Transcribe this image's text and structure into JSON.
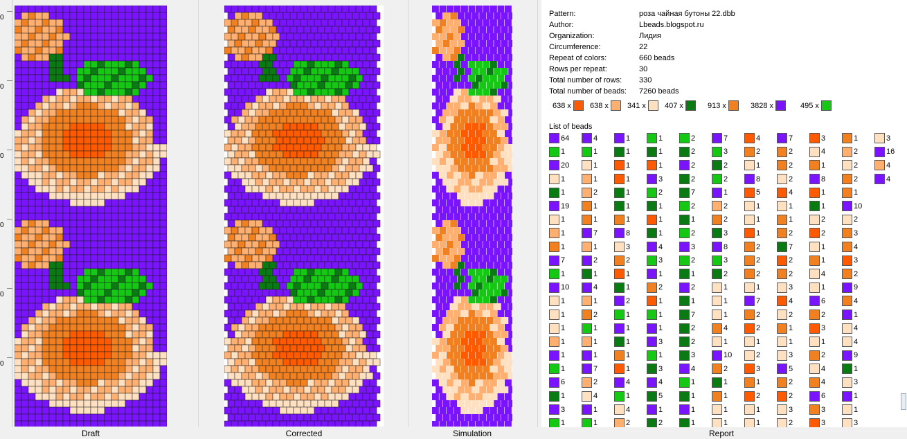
{
  "ruler": {
    "ticks": [
      "0",
      "0",
      "0",
      "0",
      "0",
      "0"
    ]
  },
  "panels": {
    "draft": "Draft",
    "corrected": "Corrected",
    "simulation": "Simulation",
    "report": "Report"
  },
  "colors": {
    "c1": "#ff5a00",
    "c2": "#ffb070",
    "c3": "#ffe0c0",
    "c4": "#0a7a12",
    "c5": "#f08020",
    "c6": "#7a14ff",
    "c7": "#14c814",
    "empty": "#ffffff",
    "grid": "#1a1a1a"
  },
  "report": {
    "info": [
      {
        "key": "Pattern:",
        "value": "роза чайная бутоны 22.dbb"
      },
      {
        "key": "Author:",
        "value": "Lbeads.blogspot.ru"
      },
      {
        "key": "Organization:",
        "value": "Лидия"
      },
      {
        "key": "Circumference:",
        "value": "22"
      },
      {
        "key": "Repeat of colors:",
        "value": "660 beads"
      },
      {
        "key": "Rows per repeat:",
        "value": "30"
      },
      {
        "key": "Total number of rows:",
        "value": "330"
      },
      {
        "key": "Total number of beads:",
        "value": "7260 beads"
      }
    ],
    "summary": [
      {
        "count": "638 x",
        "color": "c1"
      },
      {
        "count": "638 x",
        "color": "c2"
      },
      {
        "count": "341 x",
        "color": "c3"
      },
      {
        "count": "407 x",
        "color": "c4"
      },
      {
        "count": "913 x",
        "color": "c5"
      },
      {
        "count": "3828 x",
        "color": "c6"
      },
      {
        "count": "495 x",
        "color": "c7"
      }
    ],
    "list_title": "List of beads",
    "bead_rows": [
      [
        [
          "c6",
          "64"
        ],
        [
          "c6",
          "4"
        ],
        [
          "c6",
          "1"
        ],
        [
          "c7",
          "1"
        ],
        [
          "c7",
          "2"
        ],
        [
          "c6",
          "7"
        ],
        [
          "c1",
          "4"
        ],
        [
          "c6",
          "7"
        ],
        [
          "c1",
          "3"
        ],
        [
          "c5",
          "1"
        ],
        [
          "c3",
          "3"
        ]
      ],
      [
        [
          "c7",
          "1"
        ],
        [
          "c7",
          "1"
        ],
        [
          "c4",
          "1"
        ],
        [
          "c4",
          "1"
        ],
        [
          "c4",
          "2"
        ],
        [
          "c7",
          "3"
        ],
        [
          "c5",
          "2"
        ],
        [
          "c5",
          "2"
        ],
        [
          "c3",
          "4"
        ],
        [
          "c2",
          "2"
        ],
        [
          "c6",
          "16"
        ]
      ],
      [
        [
          "c6",
          "20"
        ],
        [
          "c3",
          "1"
        ],
        [
          "c1",
          "1"
        ],
        [
          "c1",
          "1"
        ],
        [
          "c6",
          "2"
        ],
        [
          "c4",
          "2"
        ],
        [
          "c3",
          "1"
        ],
        [
          "c5",
          "2"
        ],
        [
          "c5",
          "1"
        ],
        [
          "c3",
          "2"
        ],
        [
          "c2",
          "4"
        ]
      ],
      [
        [
          "c3",
          "1"
        ],
        [
          "c2",
          "1"
        ],
        [
          "c1",
          "1"
        ],
        [
          "c6",
          "3"
        ],
        [
          "c4",
          "2"
        ],
        [
          "c7",
          "2"
        ],
        [
          "c6",
          "8"
        ],
        [
          "c3",
          "2"
        ],
        [
          "c6",
          "8"
        ],
        [
          "c5",
          "2"
        ],
        [
          "c6",
          "4"
        ]
      ],
      [
        [
          "c4",
          "1"
        ],
        [
          "c2",
          "2"
        ],
        [
          "c4",
          "1"
        ],
        [
          "c7",
          "2"
        ],
        [
          "c4",
          "7"
        ],
        [
          "c6",
          "1"
        ],
        [
          "c1",
          "5"
        ],
        [
          "c1",
          "4"
        ],
        [
          "c1",
          "1"
        ],
        [
          "c5",
          "1"
        ],
        null
      ],
      [
        [
          "c6",
          "19"
        ],
        [
          "c5",
          "1"
        ],
        [
          "c4",
          "1"
        ],
        [
          "c4",
          "1"
        ],
        [
          "c7",
          "2"
        ],
        [
          "c2",
          "2"
        ],
        [
          "c3",
          "1"
        ],
        [
          "c3",
          "1"
        ],
        [
          "c4",
          "1"
        ],
        [
          "c6",
          "10"
        ],
        null
      ],
      [
        [
          "c3",
          "1"
        ],
        [
          "c5",
          "1"
        ],
        [
          "c5",
          "1"
        ],
        [
          "c1",
          "1"
        ],
        [
          "c4",
          "1"
        ],
        [
          "c5",
          "2"
        ],
        [
          "c3",
          "1"
        ],
        [
          "c5",
          "1"
        ],
        [
          "c3",
          "2"
        ],
        [
          "c3",
          "2"
        ],
        null
      ],
      [
        [
          "c2",
          "1"
        ],
        [
          "c6",
          "7"
        ],
        [
          "c6",
          "8"
        ],
        [
          "c4",
          "1"
        ],
        [
          "c7",
          "2"
        ],
        [
          "c4",
          "3"
        ],
        [
          "c1",
          "1"
        ],
        [
          "c5",
          "2"
        ],
        [
          "c1",
          "2"
        ],
        [
          "c5",
          "3"
        ],
        null
      ],
      [
        [
          "c5",
          "1"
        ],
        [
          "c2",
          "1"
        ],
        [
          "c3",
          "3"
        ],
        [
          "c6",
          "4"
        ],
        [
          "c6",
          "3"
        ],
        [
          "c6",
          "8"
        ],
        [
          "c5",
          "2"
        ],
        [
          "c4",
          "7"
        ],
        [
          "c3",
          "1"
        ],
        [
          "c5",
          "4"
        ],
        null
      ],
      [
        [
          "c6",
          "7"
        ],
        [
          "c6",
          "2"
        ],
        [
          "c5",
          "2"
        ],
        [
          "c7",
          "3"
        ],
        [
          "c7",
          "2"
        ],
        [
          "c7",
          "3"
        ],
        [
          "c5",
          "2"
        ],
        [
          "c1",
          "2"
        ],
        [
          "c5",
          "1"
        ],
        [
          "c1",
          "3"
        ],
        null
      ],
      [
        [
          "c7",
          "1"
        ],
        [
          "c4",
          "1"
        ],
        [
          "c1",
          "1"
        ],
        [
          "c6",
          "1"
        ],
        [
          "c4",
          "1"
        ],
        [
          "c4",
          "2"
        ],
        [
          "c5",
          "2"
        ],
        [
          "c5",
          "2"
        ],
        [
          "c3",
          "4"
        ],
        [
          "c5",
          "2"
        ],
        null
      ],
      [
        [
          "c6",
          "10"
        ],
        [
          "c6",
          "4"
        ],
        [
          "c4",
          "1"
        ],
        [
          "c5",
          "2"
        ],
        [
          "c6",
          "2"
        ],
        [
          "c3",
          "1"
        ],
        [
          "c3",
          "1"
        ],
        [
          "c3",
          "3"
        ],
        [
          "c3",
          "1"
        ],
        [
          "c6",
          "9"
        ],
        null
      ],
      [
        [
          "c3",
          "1"
        ],
        [
          "c2",
          "1"
        ],
        [
          "c6",
          "2"
        ],
        [
          "c1",
          "1"
        ],
        [
          "c4",
          "1"
        ],
        [
          "c3",
          "1"
        ],
        [
          "c6",
          "7"
        ],
        [
          "c1",
          "4"
        ],
        [
          "c6",
          "6"
        ],
        [
          "c5",
          "4"
        ],
        null
      ],
      [
        [
          "c3",
          "1"
        ],
        [
          "c5",
          "2"
        ],
        [
          "c7",
          "1"
        ],
        [
          "c7",
          "1"
        ],
        [
          "c4",
          "7"
        ],
        [
          "c3",
          "1"
        ],
        [
          "c5",
          "2"
        ],
        [
          "c3",
          "2"
        ],
        [
          "c5",
          "2"
        ],
        [
          "c6",
          "1"
        ],
        null
      ],
      [
        [
          "c3",
          "1"
        ],
        [
          "c7",
          "1"
        ],
        [
          "c6",
          "1"
        ],
        [
          "c6",
          "1"
        ],
        [
          "c4",
          "2"
        ],
        [
          "c5",
          "4"
        ],
        [
          "c1",
          "2"
        ],
        [
          "c5",
          "1"
        ],
        [
          "c1",
          "3"
        ],
        [
          "c3",
          "4"
        ],
        null
      ],
      [
        [
          "c2",
          "1"
        ],
        [
          "c2",
          "1"
        ],
        [
          "c4",
          "1"
        ],
        [
          "c6",
          "3"
        ],
        [
          "c4",
          "2"
        ],
        [
          "c3",
          "1"
        ],
        [
          "c3",
          "1"
        ],
        [
          "c3",
          "1"
        ],
        [
          "c3",
          "1"
        ],
        [
          "c3",
          "4"
        ],
        null
      ],
      [
        [
          "c6",
          "1"
        ],
        [
          "c6",
          "1"
        ],
        [
          "c5",
          "1"
        ],
        [
          "c7",
          "1"
        ],
        [
          "c4",
          "3"
        ],
        [
          "c6",
          "10"
        ],
        [
          "c3",
          "2"
        ],
        [
          "c3",
          "3"
        ],
        [
          "c5",
          "2"
        ],
        [
          "c6",
          "9"
        ],
        null
      ],
      [
        [
          "c7",
          "1"
        ],
        [
          "c6",
          "7"
        ],
        [
          "c1",
          "1"
        ],
        [
          "c4",
          "3"
        ],
        [
          "c6",
          "4"
        ],
        [
          "c5",
          "2"
        ],
        [
          "c1",
          "3"
        ],
        [
          "c6",
          "5"
        ],
        [
          "c3",
          "4"
        ],
        [
          "c4",
          "1"
        ],
        null
      ],
      [
        [
          "c6",
          "6"
        ],
        [
          "c2",
          "2"
        ],
        [
          "c6",
          "4"
        ],
        [
          "c6",
          "4"
        ],
        [
          "c7",
          "1"
        ],
        [
          "c4",
          "1"
        ],
        [
          "c5",
          "1"
        ],
        [
          "c5",
          "2"
        ],
        [
          "c5",
          "4"
        ],
        [
          "c3",
          "3"
        ],
        null
      ],
      [
        [
          "c4",
          "1"
        ],
        [
          "c3",
          "4"
        ],
        [
          "c7",
          "1"
        ],
        [
          "c4",
          "5"
        ],
        [
          "c4",
          "1"
        ],
        [
          "c5",
          "1"
        ],
        [
          "c1",
          "2"
        ],
        [
          "c1",
          "2"
        ],
        [
          "c6",
          "6"
        ],
        [
          "c6",
          "1"
        ],
        null
      ],
      [
        [
          "c6",
          "3"
        ],
        [
          "c6",
          "1"
        ],
        [
          "c3",
          "4"
        ],
        [
          "c6",
          "1"
        ],
        [
          "c6",
          "1"
        ],
        [
          "c3",
          "1"
        ],
        [
          "c3",
          "1"
        ],
        [
          "c3",
          "3"
        ],
        [
          "c5",
          "3"
        ],
        [
          "c3",
          "1"
        ],
        null
      ],
      [
        [
          "c7",
          "1"
        ],
        [
          "c7",
          "1"
        ],
        [
          "c2",
          "2"
        ],
        [
          "c4",
          "2"
        ],
        [
          "c4",
          "1"
        ],
        [
          "c3",
          "1"
        ],
        [
          "c3",
          "1"
        ],
        [
          "c3",
          "2"
        ],
        [
          "c1",
          "3"
        ],
        [
          "c3",
          "3"
        ],
        null
      ]
    ]
  }
}
